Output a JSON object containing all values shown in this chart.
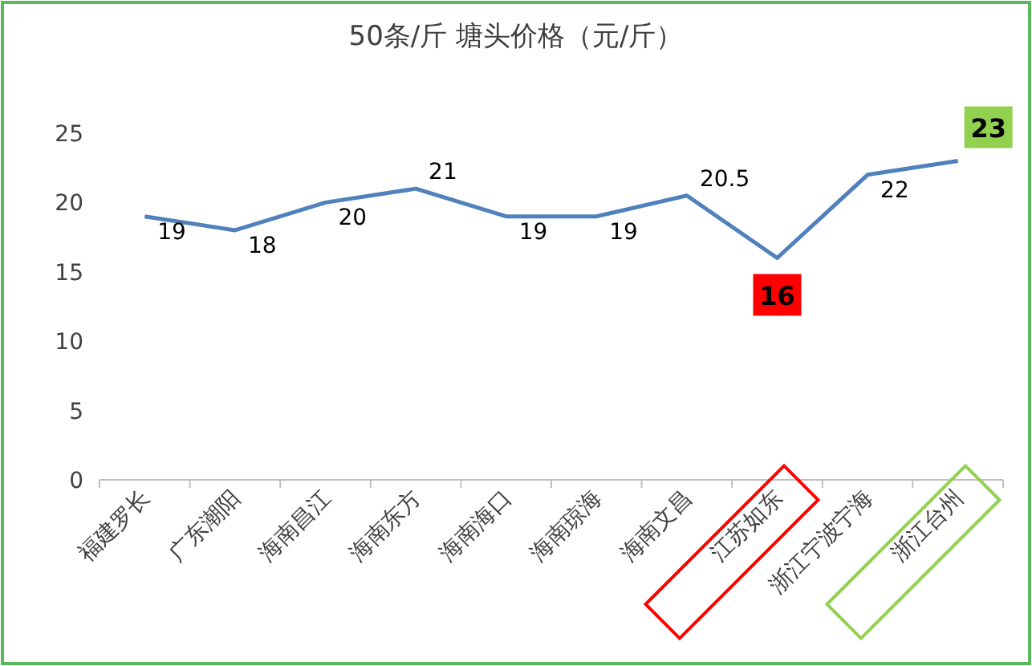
{
  "chart_data": {
    "type": "line",
    "title": "50条/斤  塘头价格（元/斤）",
    "categories": [
      "福建罗长",
      "广东潮阳",
      "海南昌江",
      "海南东方",
      "海南海口",
      "海南琼海",
      "海南文昌",
      "江苏如东",
      "浙江宁波宁海",
      "浙江台州"
    ],
    "values": [
      19,
      18,
      20,
      21,
      19,
      19,
      20.5,
      16,
      22,
      23
    ],
    "color": "#4f81bd",
    "colors": [
      null,
      null,
      null,
      null,
      null,
      null,
      null,
      "#ff0000",
      null,
      "#92d050"
    ],
    "ylim": [
      0,
      25
    ],
    "yticks": [
      0,
      5,
      10,
      15,
      20,
      25
    ],
    "data_labels": true,
    "grid": false,
    "legend": false,
    "marker": "none",
    "line_style": "solid"
  }
}
